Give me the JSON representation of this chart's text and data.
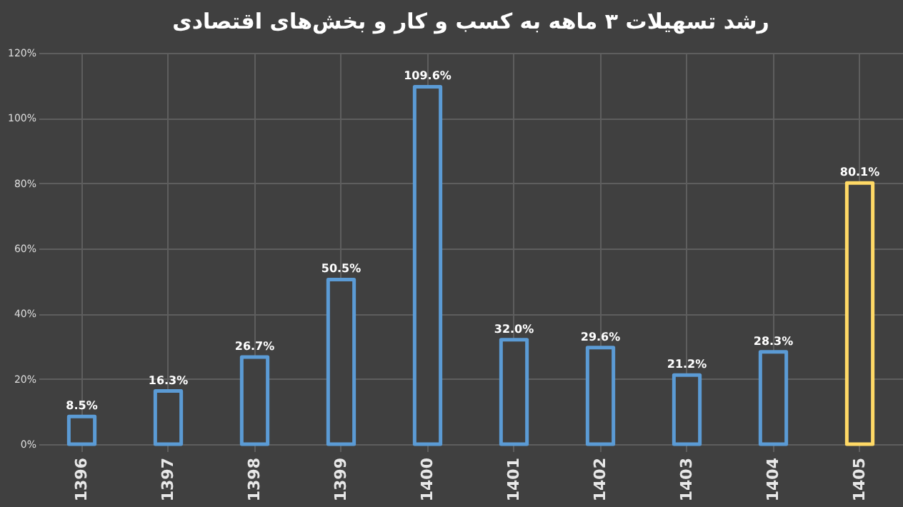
{
  "chart_data": {
    "type": "bar",
    "title": "رشد تسهیلات ۳ ماهه به کسب و کار و بخش‌های اقتصادی",
    "categories": [
      "1396",
      "1397",
      "1398",
      "1399",
      "1400",
      "1401",
      "1402",
      "1403",
      "1404",
      "1405"
    ],
    "values": [
      8.5,
      16.3,
      26.7,
      50.5,
      109.6,
      32.0,
      29.6,
      21.2,
      28.3,
      80.1
    ],
    "value_labels": [
      "8.5%",
      "16.3%",
      "26.7%",
      "50.5%",
      "109.6%",
      "32.0%",
      "29.6%",
      "21.2%",
      "28.3%",
      "80.1%"
    ],
    "colors": [
      "#5b9bd5",
      "#5b9bd5",
      "#5b9bd5",
      "#5b9bd5",
      "#5b9bd5",
      "#5b9bd5",
      "#5b9bd5",
      "#5b9bd5",
      "#5b9bd5",
      "#ffd966"
    ],
    "ylim": [
      0,
      120
    ],
    "yticks": [
      {
        "value": 0,
        "label": "0%"
      },
      {
        "value": 20,
        "label": "20%"
      },
      {
        "value": 40,
        "label": "40%"
      },
      {
        "value": 60,
        "label": "60%"
      },
      {
        "value": 80,
        "label": "80%"
      },
      {
        "value": 100,
        "label": "100%"
      },
      {
        "value": 120,
        "label": "120%"
      }
    ],
    "grid": true
  }
}
